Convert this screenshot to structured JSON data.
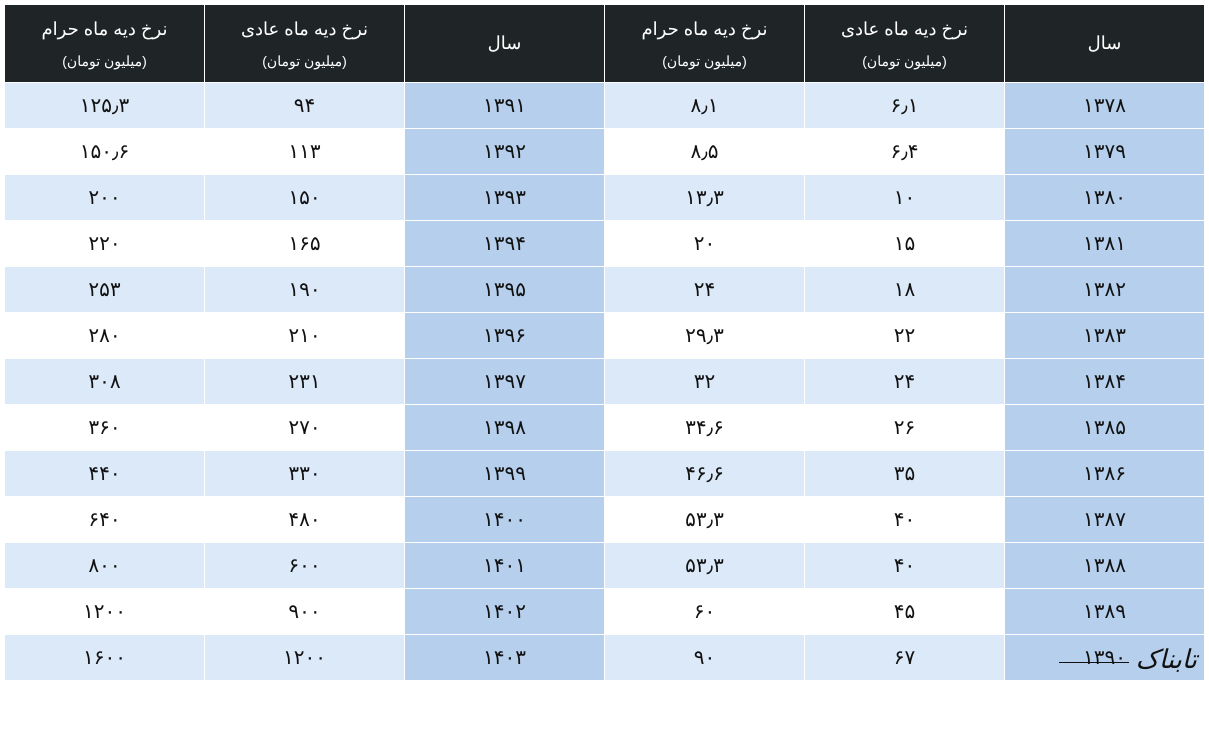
{
  "headers": {
    "year": {
      "main": "سال",
      "sub": ""
    },
    "normal_month": {
      "main": "نرخ دیه ماه عادی",
      "sub": "(میلیون تومان)"
    },
    "haram_month": {
      "main": "نرخ دیه ماه حرام",
      "sub": "(میلیون تومان)"
    }
  },
  "colors": {
    "header_bg": "#1f2526",
    "header_fg": "#ffffff",
    "year_cell": "#b5cfec",
    "val_cell_a": "#dce9f8",
    "val_cell_b": "#ffffff",
    "border": "#ffffff",
    "text": "#111111"
  },
  "font_sizes": {
    "header_main": 18,
    "header_sub": 14,
    "cell": 20
  },
  "rows_right": [
    {
      "year": "۱۳۷۸",
      "normal": "۶٫۱",
      "haram": "۸٫۱"
    },
    {
      "year": "۱۳۷۹",
      "normal": "۶٫۴",
      "haram": "۸٫۵"
    },
    {
      "year": "۱۳۸۰",
      "normal": "۱۰",
      "haram": "۱۳٫۳"
    },
    {
      "year": "۱۳۸۱",
      "normal": "۱۵",
      "haram": "۲۰"
    },
    {
      "year": "۱۳۸۲",
      "normal": "۱۸",
      "haram": "۲۴"
    },
    {
      "year": "۱۳۸۳",
      "normal": "۲۲",
      "haram": "۲۹٫۳"
    },
    {
      "year": "۱۳۸۴",
      "normal": "۲۴",
      "haram": "۳۲"
    },
    {
      "year": "۱۳۸۵",
      "normal": "۲۶",
      "haram": "۳۴٫۶"
    },
    {
      "year": "۱۳۸۶",
      "normal": "۳۵",
      "haram": "۴۶٫۶"
    },
    {
      "year": "۱۳۸۷",
      "normal": "۴۰",
      "haram": "۵۳٫۳"
    },
    {
      "year": "۱۳۸۸",
      "normal": "۴۰",
      "haram": "۵۳٫۳"
    },
    {
      "year": "۱۳۸۹",
      "normal": "۴۵",
      "haram": "۶۰"
    },
    {
      "year": "۱۳۹۰",
      "normal": "۶۷",
      "haram": "۹۰"
    }
  ],
  "rows_left": [
    {
      "year": "۱۳۹۱",
      "normal": "۹۴",
      "haram": "۱۲۵٫۳"
    },
    {
      "year": "۱۳۹۲",
      "normal": "۱۱۳",
      "haram": "۱۵۰٫۶"
    },
    {
      "year": "۱۳۹۳",
      "normal": "۱۵۰",
      "haram": "۲۰۰"
    },
    {
      "year": "۱۳۹۴",
      "normal": "۱۶۵",
      "haram": "۲۲۰"
    },
    {
      "year": "۱۳۹۵",
      "normal": "۱۹۰",
      "haram": "۲۵۳"
    },
    {
      "year": "۱۳۹۶",
      "normal": "۲۱۰",
      "haram": "۲۸۰"
    },
    {
      "year": "۱۳۹۷",
      "normal": "۲۳۱",
      "haram": "۳۰۸"
    },
    {
      "year": "۱۳۹۸",
      "normal": "۲۷۰",
      "haram": "۳۶۰"
    },
    {
      "year": "۱۳۹۹",
      "normal": "۳۳۰",
      "haram": "۴۴۰"
    },
    {
      "year": "۱۴۰۰",
      "normal": "۴۸۰",
      "haram": "۶۴۰"
    },
    {
      "year": "۱۴۰۱",
      "normal": "۶۰۰",
      "haram": "۸۰۰"
    },
    {
      "year": "۱۴۰۲",
      "normal": "۹۰۰",
      "haram": "۱۲۰۰"
    },
    {
      "year": "۱۴۰۳",
      "normal": "۱۲۰۰",
      "haram": "۱۶۰۰"
    }
  ],
  "watermark": "تابناک"
}
